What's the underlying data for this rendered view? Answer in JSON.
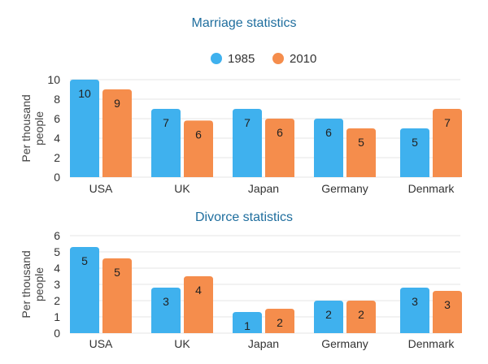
{
  "colors": {
    "series_1985": "#3fb1ee",
    "series_2010": "#f58d4c",
    "title": "#1f6e9e"
  },
  "legend": {
    "items": [
      "1985",
      "2010"
    ]
  },
  "chart_data": [
    {
      "type": "bar",
      "title": "Marriage statistics",
      "ylabel": "Per thousand people",
      "ylim": [
        0,
        10
      ],
      "yticks": [
        0,
        2,
        4,
        6,
        8,
        10
      ],
      "categories": [
        "USA",
        "UK",
        "Japan",
        "Germany",
        "Denmark"
      ],
      "series": [
        {
          "name": "1985",
          "values": [
            10,
            7,
            7,
            6,
            5
          ],
          "labels": [
            "10",
            "7",
            "7",
            "6",
            "5"
          ]
        },
        {
          "name": "2010",
          "values": [
            9,
            5.8,
            6,
            5,
            7
          ],
          "labels": [
            "9",
            "6",
            "6",
            "5",
            "7"
          ]
        }
      ],
      "legend_position": "top-center",
      "grid": true
    },
    {
      "type": "bar",
      "title": "Divorce statistics",
      "ylabel": "Per thousand people",
      "ylim": [
        0,
        6
      ],
      "yticks": [
        0,
        1,
        2,
        3,
        4,
        5,
        6
      ],
      "categories": [
        "USA",
        "UK",
        "Japan",
        "Germany",
        "Denmark"
      ],
      "series": [
        {
          "name": "1985",
          "values": [
            5.3,
            2.8,
            1.3,
            2,
            2.8
          ],
          "labels": [
            "5",
            "3",
            "1",
            "2",
            "3"
          ]
        },
        {
          "name": "2010",
          "values": [
            4.6,
            3.5,
            1.5,
            2,
            2.6
          ],
          "labels": [
            "5",
            "4",
            "2",
            "2",
            "3"
          ]
        }
      ],
      "grid": true
    }
  ]
}
